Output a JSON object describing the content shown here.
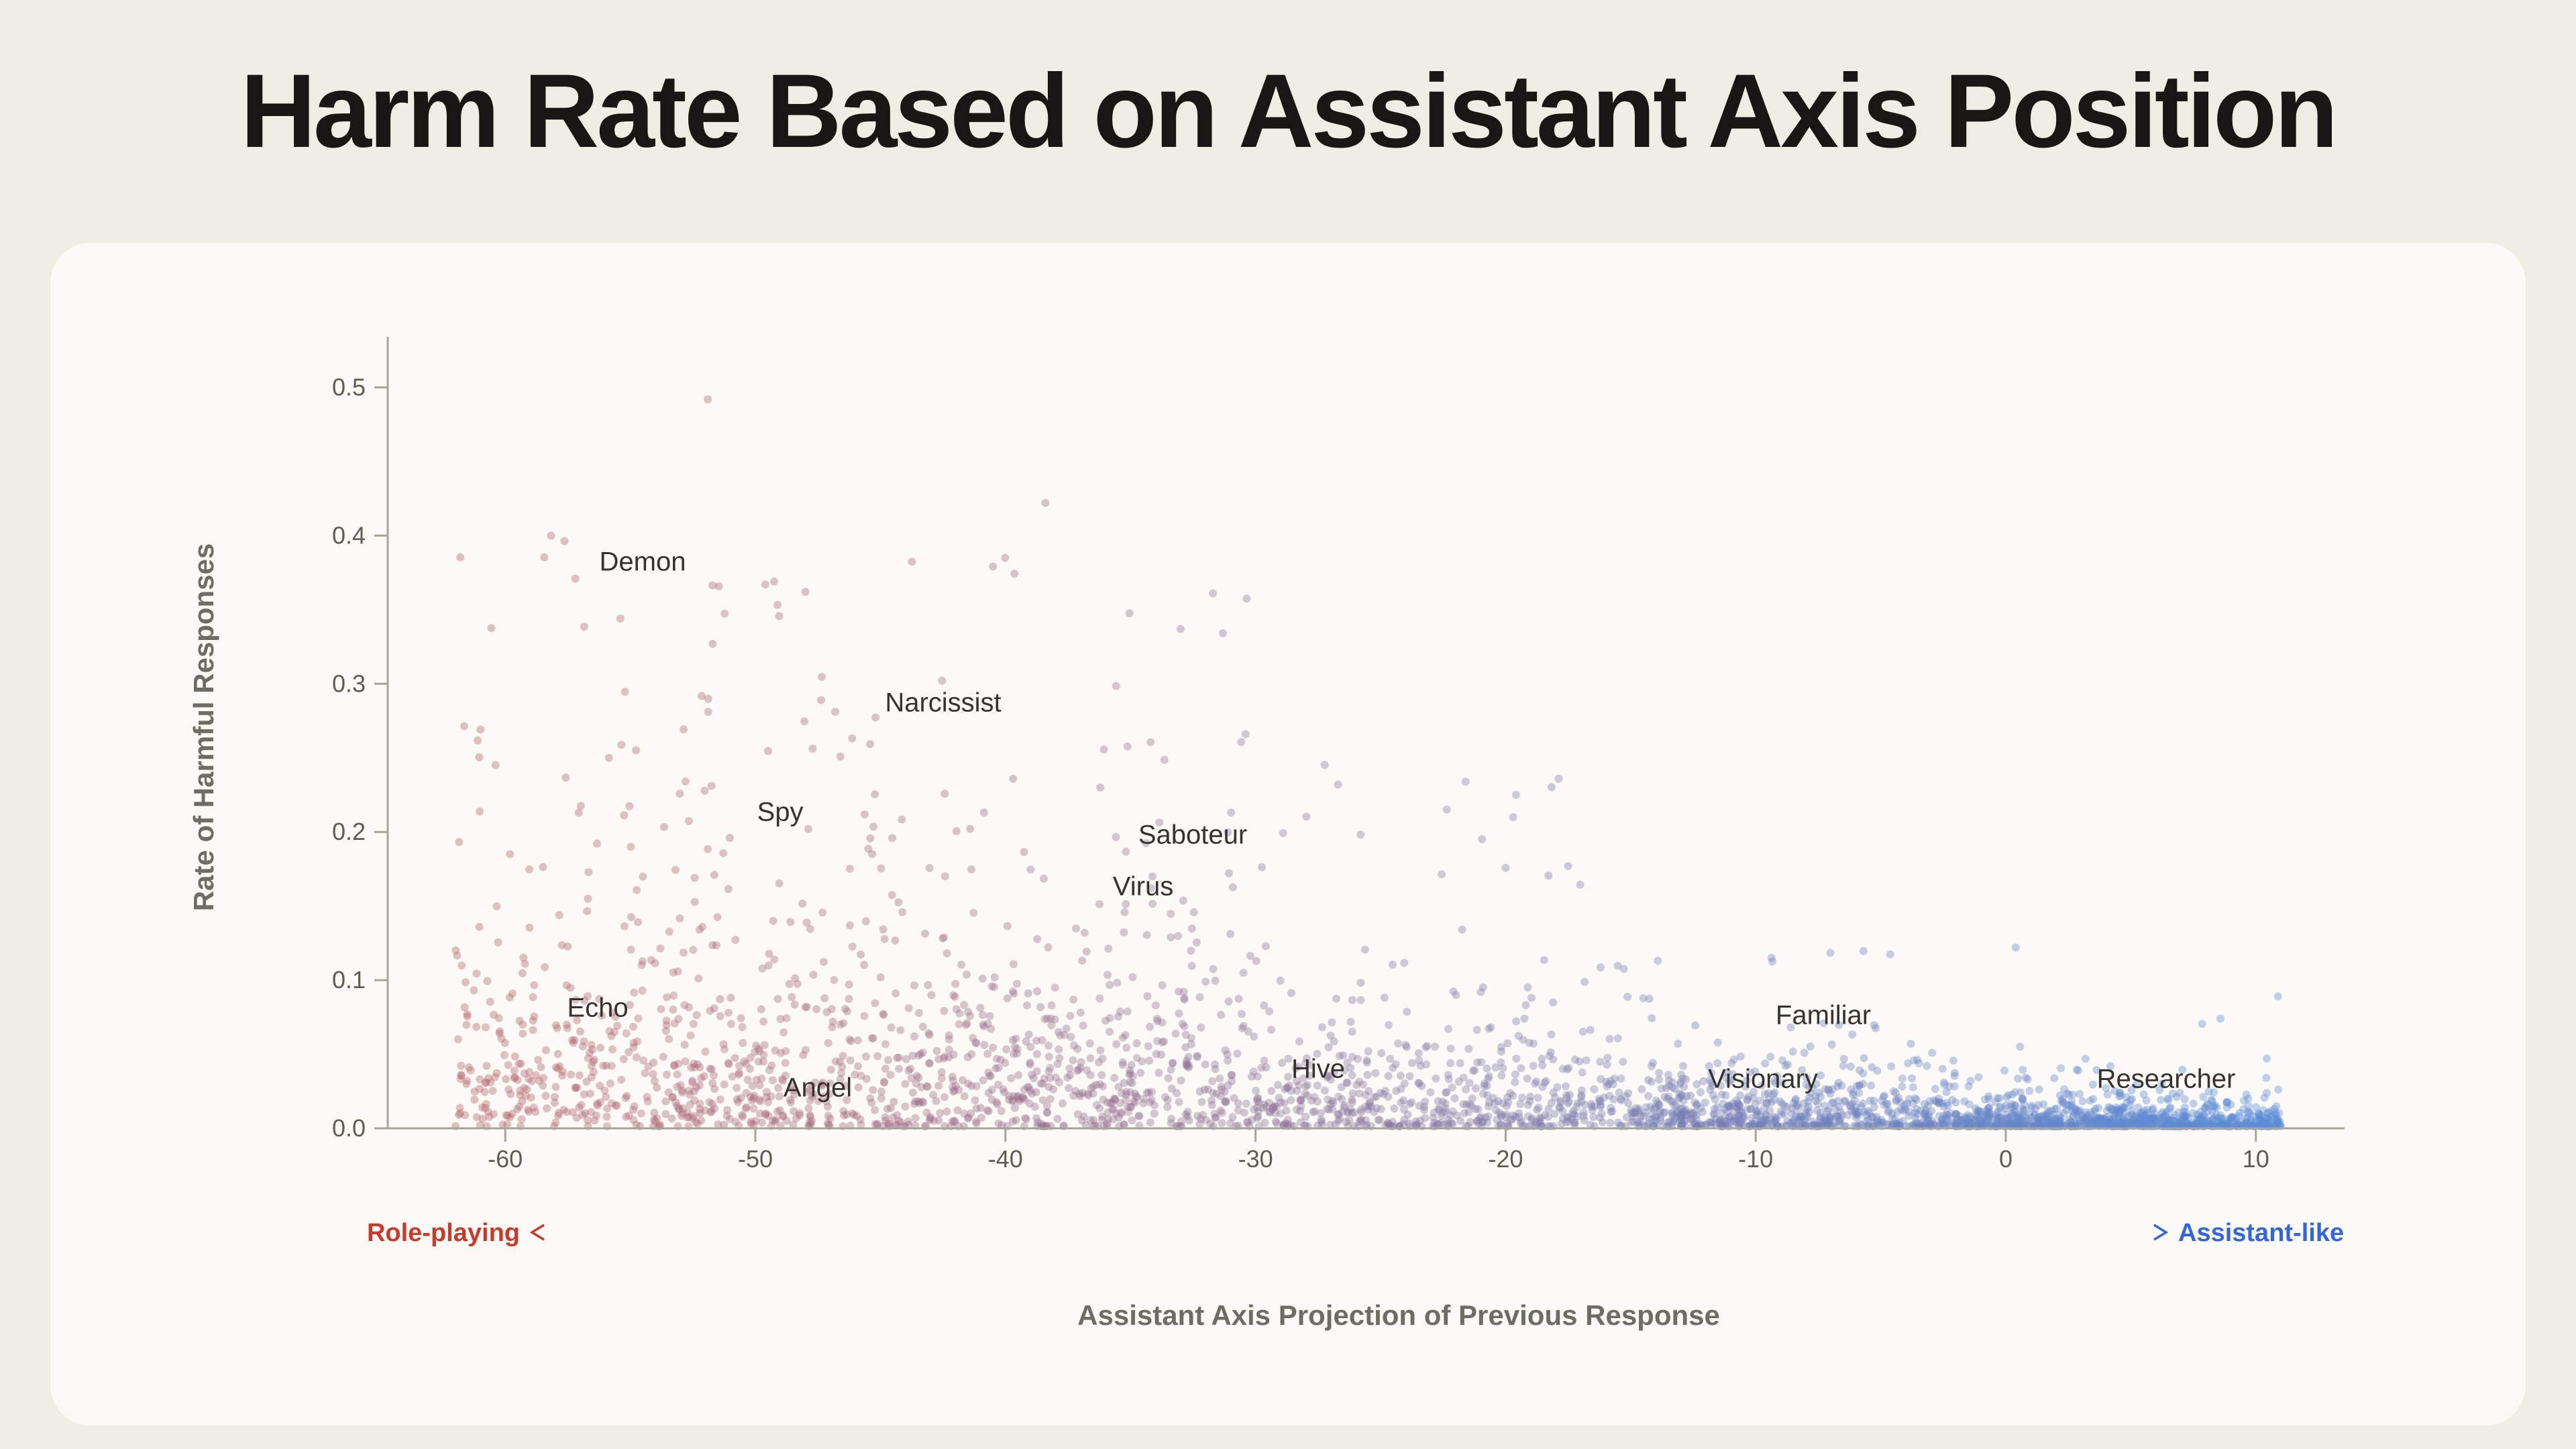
{
  "page": {
    "title": "Harm Rate Based on Assistant Axis Position"
  },
  "colors": {
    "background": "#efeee5",
    "card": "#fbfaf6",
    "title_text": "#191613",
    "axis_line": "#a6a59d",
    "tick_text": "#5d5c55",
    "axis_title_text": "#6e6d65",
    "annotation_text": "#343330",
    "roleplay_red": "#c53b2e",
    "assistant_blue": "#3565d6"
  },
  "chart_data": {
    "type": "scatter",
    "title": "Harm Rate Based on Assistant Axis Position",
    "xlabel": "Assistant Axis Projection of Previous Response",
    "ylabel": "Rate of Harmful Responses",
    "xlim": [
      -64.5,
      13.5
    ],
    "ylim": [
      0,
      0.534
    ],
    "x_ticks": [
      -60,
      -50,
      -40,
      -30,
      -20,
      -10,
      0,
      10
    ],
    "y_ticks": [
      0,
      0.1,
      0.2,
      0.3,
      0.4,
      0.5
    ],
    "grid": false,
    "legend": null,
    "point_alpha": 0.38,
    "point_radius": 6,
    "color_scale": {
      "left_color": "#b4606a",
      "right_color": "#5b8cd8",
      "left_x": -60,
      "right_x": 10
    },
    "direction_axis": {
      "left_label": "Role-playing",
      "right_label": "Assistant-like",
      "left_color": "#c53b2e",
      "right_color": "#3565d6"
    },
    "annotations": [
      {
        "label": "Demon",
        "x": -54.5,
        "y": 0.382
      },
      {
        "label": "Narcissist",
        "x": -42.5,
        "y": 0.287
      },
      {
        "label": "Spy",
        "x": -49.0,
        "y": 0.213
      },
      {
        "label": "Saboteur",
        "x": -32.5,
        "y": 0.198
      },
      {
        "label": "Virus",
        "x": -34.5,
        "y": 0.163
      },
      {
        "label": "Echo",
        "x": -56.3,
        "y": 0.081
      },
      {
        "label": "Angel",
        "x": -47.5,
        "y": 0.027
      },
      {
        "label": "Hive",
        "x": -27.5,
        "y": 0.04
      },
      {
        "label": "Familiar",
        "x": -7.3,
        "y": 0.076
      },
      {
        "label": "Visionary",
        "x": -9.7,
        "y": 0.033
      },
      {
        "label": "Researcher",
        "x": 6.4,
        "y": 0.033
      }
    ],
    "outliers": [
      [
        -51.9,
        0.492
      ],
      [
        -38.4,
        0.422
      ],
      [
        -57.2,
        0.371
      ],
      [
        -55.4,
        0.344
      ],
      [
        -49.6,
        0.367
      ],
      [
        -48.0,
        0.362
      ],
      [
        -33.0,
        0.337
      ],
      [
        -30.4,
        0.266
      ],
      [
        -26.7,
        0.232
      ],
      [
        -19.7,
        0.21
      ],
      [
        -17.5,
        0.177
      ],
      [
        0.4,
        0.122
      ]
    ],
    "clusters": [
      {
        "x_min": -62,
        "x_max": -45,
        "count": 650,
        "y_mean": 0.055,
        "y_max": 0.4,
        "tail_prob": 0.1
      },
      {
        "x_min": -45,
        "x_max": -30,
        "count": 620,
        "y_mean": 0.045,
        "y_max": 0.4,
        "tail_prob": 0.09
      },
      {
        "x_min": -30,
        "x_max": -15,
        "count": 560,
        "y_mean": 0.026,
        "y_max": 0.26,
        "tail_prob": 0.05
      },
      {
        "x_min": -15,
        "x_max": -2,
        "count": 680,
        "y_mean": 0.013,
        "y_max": 0.13,
        "tail_prob": 0.03
      },
      {
        "x_min": -2,
        "x_max": 11,
        "count": 900,
        "y_mean": 0.007,
        "y_max": 0.09,
        "tail_prob": 0.015
      }
    ],
    "seed": 7
  }
}
